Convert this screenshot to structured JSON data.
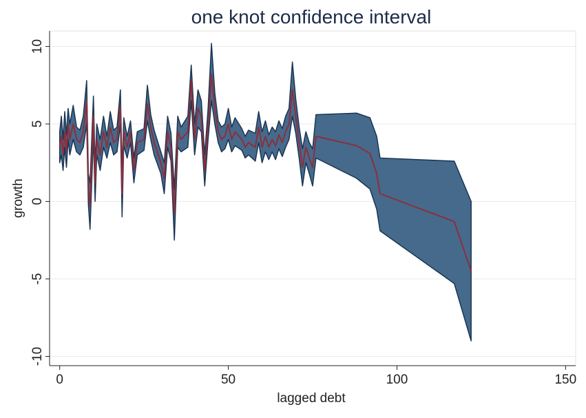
{
  "chart_data": {
    "type": "line",
    "title": "one knot confidence interval",
    "xlabel": "lagged debt",
    "ylabel": "growth",
    "x": [
      0,
      0.5,
      1,
      1.5,
      2,
      2.5,
      3,
      4,
      5,
      6,
      7,
      8,
      8.5,
      9,
      10,
      10.5,
      11,
      12,
      13,
      14,
      15,
      16,
      17,
      18,
      18.5,
      19,
      20,
      21,
      22,
      23,
      25,
      26,
      27,
      28,
      30,
      31,
      32,
      33,
      34,
      35,
      36,
      38,
      39,
      40,
      41,
      42,
      43,
      44,
      45,
      46,
      47,
      48,
      49,
      50,
      51,
      52,
      54,
      55,
      56,
      58,
      59,
      60,
      61,
      62,
      63,
      64,
      65,
      66,
      67,
      68,
      69,
      70,
      71,
      72,
      73,
      74,
      75,
      76,
      88,
      92,
      94,
      95,
      117,
      122
    ],
    "band": {
      "color": "#466a8c",
      "edge_color": "#1a3553",
      "lower": [
        2.5,
        3.0,
        2.0,
        3.5,
        2.2,
        4.0,
        3.0,
        4.0,
        3.2,
        3.0,
        3.5,
        5.0,
        -0.2,
        -1.8,
        4.2,
        0.0,
        3.0,
        2.0,
        3.5,
        2.8,
        3.8,
        3.0,
        3.2,
        5.0,
        -1.0,
        3.6,
        2.8,
        3.8,
        1.2,
        3.0,
        3.3,
        5.2,
        4.0,
        3.0,
        1.8,
        0.5,
        3.5,
        2.6,
        -2.5,
        3.5,
        3.2,
        3.5,
        6.5,
        3.0,
        4.8,
        4.5,
        1.0,
        4.0,
        6.5,
        5.0,
        3.8,
        3.2,
        3.4,
        4.0,
        3.2,
        3.6,
        3.3,
        2.8,
        3.0,
        2.6,
        3.8,
        2.5,
        3.2,
        2.7,
        3.2,
        2.7,
        3.4,
        2.9,
        3.5,
        4.0,
        5.5,
        4.4,
        2.8,
        1.0,
        2.5,
        1.8,
        1.0,
        2.8,
        1.5,
        0.8,
        -0.5,
        -1.9,
        -5.3,
        -9.0
      ],
      "upper": [
        4.5,
        5.5,
        4.0,
        5.8,
        4.3,
        6.0,
        5.0,
        6.2,
        4.8,
        4.6,
        5.5,
        7.8,
        1.8,
        1.2,
        6.8,
        2.4,
        5.0,
        4.0,
        5.5,
        4.2,
        5.8,
        4.6,
        4.8,
        7.2,
        2.0,
        5.4,
        4.2,
        5.2,
        2.8,
        4.5,
        4.7,
        7.5,
        5.6,
        4.6,
        3.2,
        2.5,
        5.5,
        4.4,
        0.8,
        5.5,
        4.8,
        5.5,
        8.8,
        5.0,
        7.2,
        6.5,
        3.0,
        6.0,
        10.2,
        7.0,
        5.2,
        4.8,
        5.0,
        6.0,
        4.8,
        5.4,
        4.7,
        4.2,
        4.6,
        4.4,
        5.8,
        4.5,
        5.2,
        4.3,
        4.8,
        4.5,
        5.2,
        4.7,
        5.5,
        6.0,
        9.0,
        6.6,
        4.8,
        3.4,
        4.5,
        3.8,
        3.4,
        5.6,
        5.7,
        5.4,
        4.2,
        2.8,
        2.6,
        0.0
      ]
    },
    "line": {
      "color": "#8b2f3c",
      "values": [
        3.5,
        4.2,
        3.0,
        4.5,
        3.2,
        5.0,
        4.0,
        5.0,
        4.0,
        3.8,
        4.5,
        6.5,
        0.8,
        -0.3,
        5.5,
        1.2,
        4.0,
        3.0,
        4.5,
        3.5,
        4.8,
        3.8,
        4.0,
        6.2,
        0.5,
        4.5,
        3.5,
        4.5,
        2.0,
        3.8,
        4.0,
        6.3,
        4.8,
        3.8,
        2.5,
        1.5,
        4.5,
        3.5,
        -0.8,
        4.5,
        4.0,
        4.5,
        7.8,
        4.0,
        6.0,
        5.5,
        2.0,
        5.0,
        8.2,
        6.0,
        4.5,
        4.0,
        4.2,
        5.0,
        4.0,
        4.5,
        4.0,
        3.5,
        3.8,
        3.5,
        4.8,
        3.5,
        4.2,
        3.5,
        4.0,
        3.6,
        4.3,
        3.8,
        4.5,
        5.0,
        7.2,
        5.5,
        3.8,
        2.2,
        3.5,
        2.8,
        2.2,
        4.2,
        3.6,
        3.1,
        1.8,
        0.5,
        -1.3,
        -4.5
      ]
    },
    "xlim": [
      -3,
      153
    ],
    "ylim": [
      -10.6,
      11
    ],
    "xticks": [
      0,
      50,
      100,
      150
    ],
    "yticks": [
      -10,
      -5,
      0,
      5,
      10
    ],
    "grid": true
  }
}
